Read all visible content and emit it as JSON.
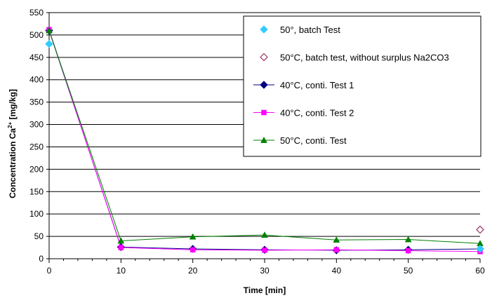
{
  "chart_data": {
    "type": "line",
    "xlabel": "Time [min]",
    "ylabel": {
      "main": "Concentration Ca",
      "sup": "2+",
      "unit": " [mg/kg]"
    },
    "xlim": [
      0,
      60
    ],
    "ylim": [
      0,
      550
    ],
    "x_ticks": [
      "0",
      "10",
      "20",
      "30",
      "40",
      "50",
      "60"
    ],
    "y_ticks": [
      "0",
      "50",
      "100",
      "150",
      "200",
      "250",
      "300",
      "350",
      "400",
      "450",
      "500",
      "550"
    ],
    "grid": "horizontal",
    "legend_position": "top-right",
    "series": [
      {
        "name": "50°, batch Test",
        "color": "#33CCFF",
        "marker": "diamond",
        "line": false,
        "points": [
          [
            0,
            480
          ],
          [
            60,
            22
          ]
        ]
      },
      {
        "name": "50°C, batch test, without surplus Na2CO3",
        "color": "#993366",
        "marker": "diamond-open",
        "line": false,
        "points": [
          [
            60,
            65
          ]
        ]
      },
      {
        "name": "40°C, conti. Test 1",
        "color": "#000080",
        "marker": "diamond",
        "line": true,
        "points": [
          [
            0,
            510
          ],
          [
            10,
            26
          ],
          [
            20,
            22
          ],
          [
            30,
            20
          ],
          [
            40,
            19
          ],
          [
            50,
            20
          ],
          [
            60,
            22
          ]
        ]
      },
      {
        "name": "40°C, conti. Test 2",
        "color": "#FF00FF",
        "marker": "square",
        "line": true,
        "points": [
          [
            0,
            512
          ],
          [
            10,
            25
          ],
          [
            20,
            20
          ],
          [
            30,
            19
          ],
          [
            40,
            20
          ],
          [
            50,
            18
          ],
          [
            60,
            16
          ]
        ]
      },
      {
        "name": "50°C, conti. Test",
        "color": "#008000",
        "marker": "triangle",
        "line": true,
        "points": [
          [
            0,
            510
          ],
          [
            10,
            40
          ],
          [
            20,
            49
          ],
          [
            30,
            53
          ],
          [
            40,
            42
          ],
          [
            50,
            43
          ],
          [
            60,
            34
          ]
        ]
      }
    ]
  }
}
